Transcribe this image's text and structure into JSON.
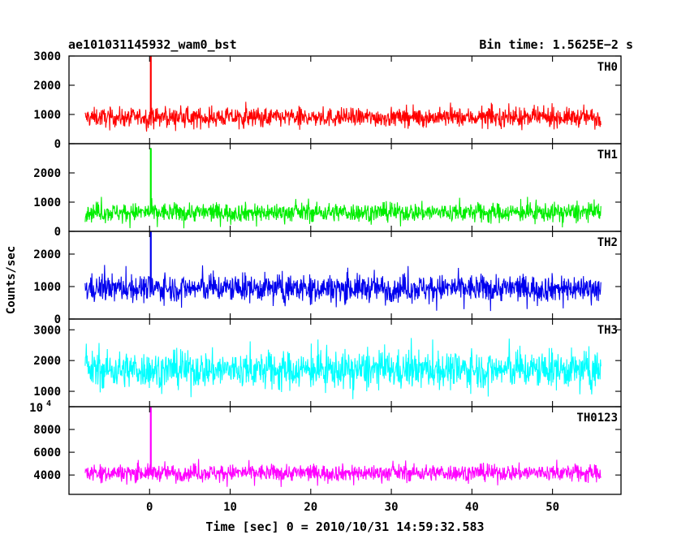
{
  "header": {
    "left_title": "ae101031145932_wam0_bst",
    "right_title": "Bin time: 1.5625E−2 s"
  },
  "chart_data": {
    "type": "line",
    "title": "ae101031145932_wam0_bst",
    "subtitle": "Bin time: 1.5625E−2 s",
    "xlabel": "Time [sec] 0 = 2010/10/31 14:59:32.583",
    "ylabel": "Counts/sec",
    "x_range": [
      -8,
      56
    ],
    "xlim": [
      -10,
      58.5
    ],
    "x_ticks": [
      0,
      10,
      20,
      30,
      40,
      50
    ],
    "grid": false,
    "panels": [
      {
        "name": "TH0",
        "color": "#ff0000",
        "ylim": [
          0,
          3000
        ],
        "y_ticks": [
          0,
          1000,
          2000,
          3000
        ],
        "y_tick_labels": [
          "0",
          "1000",
          "2000",
          "3000"
        ],
        "mean": 900,
        "spread": 350,
        "max_typical": 2150,
        "spike": {
          "x": 0.15,
          "y": 3000
        }
      },
      {
        "name": "TH1",
        "color": "#00ee00",
        "ylim": [
          0,
          3000
        ],
        "y_ticks": [
          0,
          1000,
          2000
        ],
        "y_tick_labels": [
          "0",
          "1000",
          "2000"
        ],
        "mean": 650,
        "spread": 350,
        "max_typical": 1650,
        "spike": {
          "x": 0.15,
          "y": 2850
        }
      },
      {
        "name": "TH2",
        "color": "#0000ee",
        "ylim": [
          0,
          2700
        ],
        "y_ticks": [
          0,
          1000,
          2000
        ],
        "y_tick_labels": [
          "0",
          "1000",
          "2000"
        ],
        "mean": 950,
        "spread": 450,
        "max_typical": 2450,
        "spike": {
          "x": 0.15,
          "y": 2700
        }
      },
      {
        "name": "TH3",
        "color": "#00ffff",
        "ylim": [
          500,
          3350
        ],
        "y_ticks": [
          1000,
          2000,
          3000
        ],
        "y_tick_labels": [
          "1000",
          "2000",
          "3000"
        ],
        "mean": 1700,
        "spread": 650,
        "max_typical": 3300,
        "spike": null
      },
      {
        "name": "TH0123",
        "color": "#ff00ff",
        "ylim": [
          2300,
          10000
        ],
        "y_ticks": [
          4000,
          6000,
          8000,
          10000
        ],
        "y_tick_labels": [
          "4000",
          "6000",
          "8000",
          ""
        ],
        "mean": 4200,
        "spread": 800,
        "max_typical": 6300,
        "spike": {
          "x": 0.15,
          "y": 10000
        }
      }
    ],
    "top_tick_exponent_label": {
      "base": "10",
      "exp": "4"
    }
  }
}
